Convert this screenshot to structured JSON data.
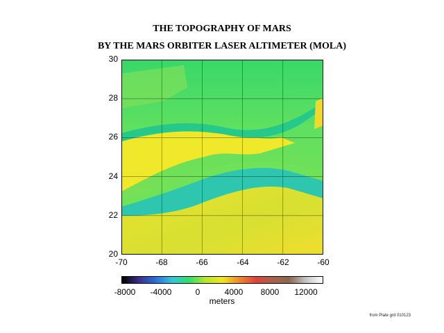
{
  "title": {
    "line1": "THE TOPOGRAPHY OF MARS",
    "line2": "BY THE MARS ORBITER LASER ALTIMETER (MOLA)"
  },
  "map": {
    "y_ticks": [
      "30",
      "28",
      "26",
      "24",
      "22",
      "20"
    ],
    "x_ticks": [
      "-70",
      "-68",
      "-66",
      "-64",
      "-62",
      "-60"
    ],
    "lat_range": [
      20,
      30
    ],
    "lon_range": [
      -70,
      -60
    ],
    "grid": true
  },
  "colorbar": {
    "ticks": [
      "-8000",
      "-4000",
      "0",
      "4000",
      "8000",
      "12000"
    ],
    "unit": "meters",
    "range": [
      -9000,
      13000
    ],
    "colors": [
      "#000000",
      "#3b2e8c",
      "#2a6fd8",
      "#31c7d6",
      "#2ee06a",
      "#b9e62a",
      "#f2e61d",
      "#f08a2a",
      "#e0423e",
      "#a8634a",
      "#8a6a50",
      "#c4c4c4",
      "#ffffff"
    ]
  },
  "credit": "from Plate grd 010123"
}
